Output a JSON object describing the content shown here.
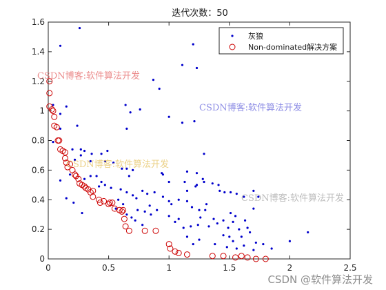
{
  "chart_data": {
    "type": "scatter",
    "title": "迭代次数：50",
    "xlabel": "",
    "ylabel": "",
    "xlim": [
      0,
      2.5
    ],
    "ylim": [
      0,
      1.6
    ],
    "x_ticks": [
      0,
      0.5,
      1,
      1.5,
      2,
      2.5
    ],
    "x_tick_labels": [
      "0",
      "0.5",
      "1",
      "1.5",
      "2",
      "2.5"
    ],
    "y_ticks": [
      0,
      0.2,
      0.4,
      0.6,
      0.8,
      1,
      1.2,
      1.4,
      1.6
    ],
    "y_tick_labels": [
      "0",
      "0.2",
      "0.4",
      "0.6",
      "0.8",
      "1",
      "1.2",
      "1.4",
      "1.6"
    ],
    "grid": false,
    "legend_position": "top-right",
    "series": [
      {
        "name": "灰狼",
        "marker": "dot",
        "color": "#0000cc",
        "points": [
          [
            0.26,
            1.56
          ],
          [
            0.1,
            1.44
          ],
          [
            1.2,
            1.45
          ],
          [
            1.11,
            1.31
          ],
          [
            1.23,
            1.29
          ],
          [
            0.87,
            1.21
          ],
          [
            0.92,
            1.15
          ],
          [
            0.04,
            1.04
          ],
          [
            0.15,
            1.03
          ],
          [
            0.64,
            1.04
          ],
          [
            0.68,
            0.99
          ],
          [
            0.76,
            1.01
          ],
          [
            0.1,
            0.98
          ],
          [
            1.0,
            0.96
          ],
          [
            1.11,
            0.92
          ],
          [
            1.21,
            0.93
          ],
          [
            0.24,
            0.9
          ],
          [
            0.65,
            0.88
          ],
          [
            0.1,
            0.88
          ],
          [
            0.04,
            0.79
          ],
          [
            0.2,
            0.74
          ],
          [
            0.27,
            0.74
          ],
          [
            0.3,
            0.73
          ],
          [
            0.36,
            0.71
          ],
          [
            0.27,
            0.7
          ],
          [
            0.49,
            0.73
          ],
          [
            0.44,
            0.71
          ],
          [
            1.29,
            0.71
          ],
          [
            0.22,
            0.67
          ],
          [
            0.35,
            0.66
          ],
          [
            0.47,
            0.66
          ],
          [
            0.54,
            0.65
          ],
          [
            0.61,
            0.61
          ],
          [
            0.65,
            0.61
          ],
          [
            0.7,
            0.6
          ],
          [
            0.67,
            0.56
          ],
          [
            0.94,
            0.58
          ],
          [
            0.95,
            0.57
          ],
          [
            1.15,
            0.59
          ],
          [
            1.23,
            0.58
          ],
          [
            1.28,
            0.54
          ],
          [
            1.0,
            0.52
          ],
          [
            1.13,
            0.52
          ],
          [
            1.15,
            0.46
          ],
          [
            1.22,
            0.49
          ],
          [
            1.23,
            0.5
          ],
          [
            1.29,
            0.52
          ],
          [
            1.36,
            0.51
          ],
          [
            1.41,
            0.5
          ],
          [
            1.42,
            0.46
          ],
          [
            1.46,
            0.45
          ],
          [
            1.51,
            0.45
          ],
          [
            1.56,
            0.44
          ],
          [
            1.62,
            0.42
          ],
          [
            1.7,
            0.46
          ],
          [
            1.74,
            0.42
          ],
          [
            1.7,
            0.34
          ],
          [
            0.35,
            0.56
          ],
          [
            0.3,
            0.54
          ],
          [
            0.44,
            0.52
          ],
          [
            0.47,
            0.5
          ],
          [
            0.52,
            0.48
          ],
          [
            0.6,
            0.47
          ],
          [
            0.65,
            0.45
          ],
          [
            0.7,
            0.43
          ],
          [
            0.78,
            0.46
          ],
          [
            0.82,
            0.44
          ],
          [
            0.88,
            0.45
          ],
          [
            0.73,
            0.41
          ],
          [
            0.84,
            0.36
          ],
          [
            0.9,
            0.33
          ],
          [
            0.95,
            0.42
          ],
          [
            1.0,
            0.39
          ],
          [
            1.02,
            0.37
          ],
          [
            1.08,
            0.4
          ],
          [
            1.15,
            0.39
          ],
          [
            1.19,
            0.35
          ],
          [
            1.25,
            0.33
          ],
          [
            1.3,
            0.33
          ],
          [
            1.26,
            0.28
          ],
          [
            1.31,
            0.37
          ],
          [
            0.58,
            0.4
          ],
          [
            0.62,
            0.37
          ],
          [
            0.56,
            0.34
          ],
          [
            0.65,
            0.3
          ],
          [
            0.69,
            0.28
          ],
          [
            0.74,
            0.33
          ],
          [
            0.8,
            0.32
          ],
          [
            0.85,
            0.3
          ],
          [
            0.72,
            0.26
          ],
          [
            0.78,
            0.23
          ],
          [
            1.0,
            0.29
          ],
          [
            1.05,
            0.25
          ],
          [
            1.08,
            0.27
          ],
          [
            1.12,
            0.21
          ],
          [
            1.18,
            0.22
          ],
          [
            1.24,
            0.23
          ],
          [
            1.33,
            0.22
          ],
          [
            1.37,
            0.27
          ],
          [
            1.4,
            0.24
          ],
          [
            1.45,
            0.26
          ],
          [
            1.49,
            0.21
          ],
          [
            1.53,
            0.25
          ],
          [
            1.51,
            0.31
          ],
          [
            1.55,
            0.29
          ],
          [
            1.58,
            0.2
          ],
          [
            1.63,
            0.26
          ],
          [
            1.65,
            0.21
          ],
          [
            1.67,
            0.18
          ],
          [
            1.6,
            0.15
          ],
          [
            1.5,
            0.15
          ],
          [
            1.45,
            0.16
          ],
          [
            1.38,
            0.1
          ],
          [
            1.48,
            0.08
          ],
          [
            1.53,
            0.12
          ],
          [
            1.56,
            0.07
          ],
          [
            1.62,
            0.09
          ],
          [
            1.7,
            0.06
          ],
          [
            1.72,
            0.11
          ],
          [
            1.78,
            0.1
          ],
          [
            1.85,
            0.07
          ],
          [
            2.0,
            0.12
          ],
          [
            2.15,
            0.18
          ],
          [
            1.15,
            0.15
          ],
          [
            1.2,
            0.1
          ],
          [
            1.25,
            0.13
          ],
          [
            0.4,
            0.56
          ],
          [
            0.42,
            0.49
          ],
          [
            0.15,
            0.41
          ],
          [
            0.21,
            0.38
          ],
          [
            0.28,
            0.31
          ],
          [
            0.1,
            0.53
          ],
          [
            0.18,
            0.57
          ]
        ]
      },
      {
        "name": "Non-dominated解决方案",
        "marker": "circle",
        "color": "#cc0000",
        "points": [
          [
            0.01,
            1.2
          ],
          [
            0.01,
            1.12
          ],
          [
            0.01,
            1.03
          ],
          [
            0.03,
            1.01
          ],
          [
            0.04,
            1.0
          ],
          [
            0.05,
            0.96
          ],
          [
            0.05,
            0.9
          ],
          [
            0.07,
            0.89
          ],
          [
            0.08,
            0.8
          ],
          [
            0.09,
            0.8
          ],
          [
            0.1,
            0.74
          ],
          [
            0.12,
            0.73
          ],
          [
            0.14,
            0.72
          ],
          [
            0.14,
            0.68
          ],
          [
            0.15,
            0.65
          ],
          [
            0.16,
            0.62
          ],
          [
            0.18,
            0.64
          ],
          [
            0.2,
            0.6
          ],
          [
            0.22,
            0.57
          ],
          [
            0.23,
            0.56
          ],
          [
            0.25,
            0.54
          ],
          [
            0.26,
            0.51
          ],
          [
            0.28,
            0.5
          ],
          [
            0.3,
            0.49
          ],
          [
            0.31,
            0.48
          ],
          [
            0.33,
            0.47
          ],
          [
            0.35,
            0.45
          ],
          [
            0.37,
            0.42
          ],
          [
            0.37,
            0.46
          ],
          [
            0.42,
            0.4
          ],
          [
            0.43,
            0.38
          ],
          [
            0.46,
            0.39
          ],
          [
            0.5,
            0.37
          ],
          [
            0.51,
            0.38
          ],
          [
            0.53,
            0.38
          ],
          [
            0.55,
            0.34
          ],
          [
            0.59,
            0.33
          ],
          [
            0.61,
            0.32
          ],
          [
            0.62,
            0.33
          ],
          [
            0.63,
            0.27
          ],
          [
            0.64,
            0.22
          ],
          [
            0.67,
            0.19
          ],
          [
            0.8,
            0.19
          ],
          [
            0.89,
            0.19
          ],
          [
            1.0,
            0.1
          ],
          [
            1.01,
            0.07
          ],
          [
            1.05,
            0.05
          ],
          [
            1.08,
            0.04
          ],
          [
            1.15,
            0.03
          ],
          [
            1.36,
            0.02
          ],
          [
            1.45,
            0.02
          ],
          [
            1.55,
            0.01
          ],
          [
            1.6,
            0.02
          ],
          [
            1.65,
            0.01
          ],
          [
            1.72,
            0.0
          ],
          [
            1.8,
            0.0
          ]
        ]
      }
    ]
  },
  "watermarks": [
    {
      "text": "CSDN博客:软件算法开发",
      "color": "#e87878"
    },
    {
      "text": "CSDN博客:软件算法开发",
      "color": "#7a7ae0"
    },
    {
      "text": "CSDN博客:软件算法开发",
      "color": "#e8c870"
    },
    {
      "text": "CSDN博客:软件算法开发",
      "color": "#b0b0b0"
    }
  ],
  "corner_watermark": "CSDN @软件算法开发"
}
